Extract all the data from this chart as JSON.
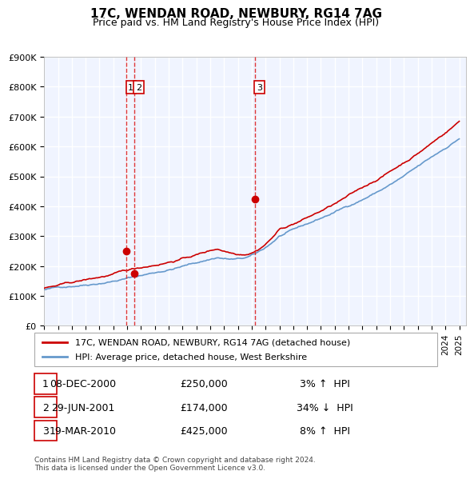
{
  "title": "17C, WENDAN ROAD, NEWBURY, RG14 7AG",
  "subtitle": "Price paid vs. HM Land Registry's House Price Index (HPI)",
  "ylabel": "",
  "background_color": "#ffffff",
  "plot_bg_color": "#f0f4ff",
  "grid_color": "#ffffff",
  "ylim": [
    0,
    900000
  ],
  "yticks": [
    0,
    100000,
    200000,
    300000,
    400000,
    500000,
    600000,
    700000,
    800000,
    900000
  ],
  "ytick_labels": [
    "£0",
    "£100K",
    "£200K",
    "£300K",
    "£400K",
    "£500K",
    "£600K",
    "£700K",
    "£800K",
    "£900K"
  ],
  "xlim_start": 1995.0,
  "xlim_end": 2025.5,
  "sale_color": "#cc0000",
  "hpi_color": "#6699cc",
  "sale_label": "17C, WENDAN ROAD, NEWBURY, RG14 7AG (detached house)",
  "hpi_label": "HPI: Average price, detached house, West Berkshire",
  "transactions": [
    {
      "num": 1,
      "date_val": 2000.92,
      "price": 250000,
      "date_str": "08-DEC-2000",
      "pct": "3%",
      "dir": "↑"
    },
    {
      "num": 2,
      "date_val": 2001.49,
      "price": 174000,
      "date_str": "29-JUN-2001",
      "pct": "34%",
      "dir": "↓"
    },
    {
      "num": 3,
      "date_val": 2010.21,
      "price": 425000,
      "date_str": "19-MAR-2010",
      "pct": "8%",
      "dir": "↑"
    }
  ],
  "vline_color": "#dd2222",
  "vline_style": "--",
  "footer": "Contains HM Land Registry data © Crown copyright and database right 2024.\nThis data is licensed under the Open Government Licence v3.0.",
  "legend_box_color": "#cc0000",
  "transaction_box_color": "#cc0000"
}
